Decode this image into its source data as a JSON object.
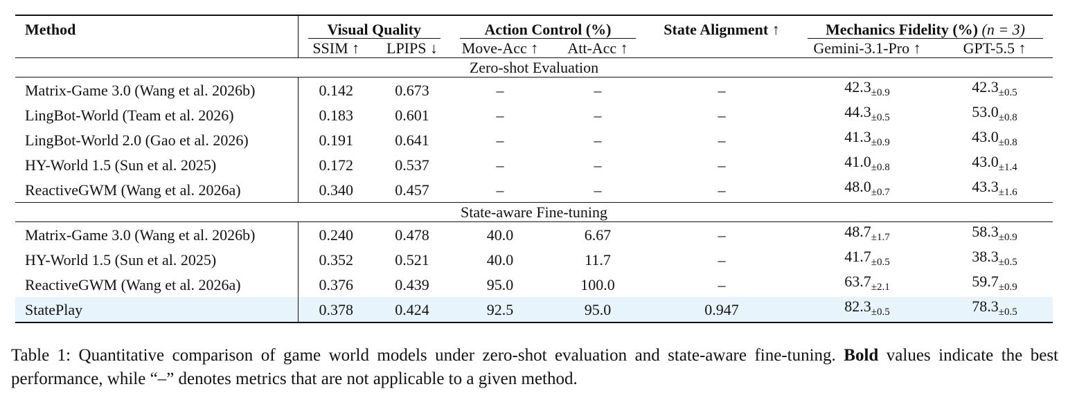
{
  "table": {
    "headers": {
      "method": "Method",
      "visual_quality": "Visual Quality",
      "action_control": "Action Control (%)",
      "state_alignment": "State Alignment ↑",
      "mechanics_fidelity": "Mechanics Fidelity (%)",
      "mechanics_fidelity_n": "(n = 3)",
      "ssim": "SSIM ↑",
      "lpips": "LPIPS ↓",
      "move_acc": "Move-Acc ↑",
      "att_acc": "Att-Acc ↑",
      "gemini": "Gemini-3.1-Pro ↑",
      "gpt": "GPT-5.5 ↑"
    },
    "sections": [
      {
        "title": "Zero-shot Evaluation",
        "rows": [
          {
            "method": "Matrix-Game 3.0 (Wang et al. 2026b)",
            "ssim": "0.142",
            "lpips": "0.673",
            "move": "–",
            "att": "–",
            "state": "–",
            "gemini": "42.3",
            "gemini_pm": "±0.9",
            "gpt": "42.3",
            "gpt_pm": "±0.5"
          },
          {
            "method": "LingBot-World (Team et al. 2026)",
            "ssim": "0.183",
            "lpips": "0.601",
            "move": "–",
            "att": "–",
            "state": "–",
            "gemini": "44.3",
            "gemini_pm": "±0.5",
            "gpt": "53.0",
            "gpt_pm": "±0.8"
          },
          {
            "method": "LingBot-World 2.0 (Gao et al. 2026)",
            "ssim": "0.191",
            "lpips": "0.641",
            "move": "–",
            "att": "–",
            "state": "–",
            "gemini": "41.3",
            "gemini_pm": "±0.9",
            "gpt": "43.0",
            "gpt_pm": "±0.8"
          },
          {
            "method": "HY-World 1.5 (Sun et al. 2025)",
            "ssim": "0.172",
            "lpips": "0.537",
            "move": "–",
            "att": "–",
            "state": "–",
            "gemini": "41.0",
            "gemini_pm": "±0.8",
            "gpt": "43.0",
            "gpt_pm": "±1.4"
          },
          {
            "method": "ReactiveGWM (Wang et al. 2026a)",
            "ssim": "0.340",
            "lpips": "0.457",
            "move": "–",
            "att": "–",
            "state": "–",
            "gemini": "48.0",
            "gemini_pm": "±0.7",
            "gpt": "43.3",
            "gpt_pm": "±1.6"
          }
        ]
      },
      {
        "title": "State-aware Fine-tuning",
        "rows": [
          {
            "method": "Matrix-Game 3.0 (Wang et al. 2026b)",
            "ssim": "0.240",
            "lpips": "0.478",
            "move": "40.0",
            "att": "6.67",
            "state": "–",
            "gemini": "48.7",
            "gemini_pm": "±1.7",
            "gpt": "58.3",
            "gpt_pm": "±0.9"
          },
          {
            "method": "HY-World 1.5 (Sun et al. 2025)",
            "ssim": "0.352",
            "lpips": "0.521",
            "move": "40.0",
            "att": "11.7",
            "state": "–",
            "gemini": "41.7",
            "gemini_pm": "±0.5",
            "gpt": "38.3",
            "gpt_pm": "±0.5"
          },
          {
            "method": "ReactiveGWM (Wang et al. 2026a)",
            "ssim": "0.376",
            "lpips": "0.439",
            "move": "95.0",
            "att": "100.0",
            "state": "–",
            "gemini": "63.7",
            "gemini_pm": "±2.1",
            "gpt": "59.7",
            "gpt_pm": "±0.9"
          },
          {
            "method": "StatePlay",
            "ssim": "0.378",
            "lpips": "0.424",
            "move": "92.5",
            "att": "95.0",
            "state": "0.947",
            "gemini": "82.3",
            "gemini_pm": "±0.5",
            "gpt": "78.3",
            "gpt_pm": "±0.5"
          }
        ]
      }
    ]
  },
  "caption": {
    "prefix": "Table 1: Quantitative comparison of game world models under zero-shot evaluation and state-aware fine-tuning.",
    "bold_word": "Bold",
    "suffix": "values indicate the best performance, while “–” denotes metrics that are not applicable to a given method."
  }
}
